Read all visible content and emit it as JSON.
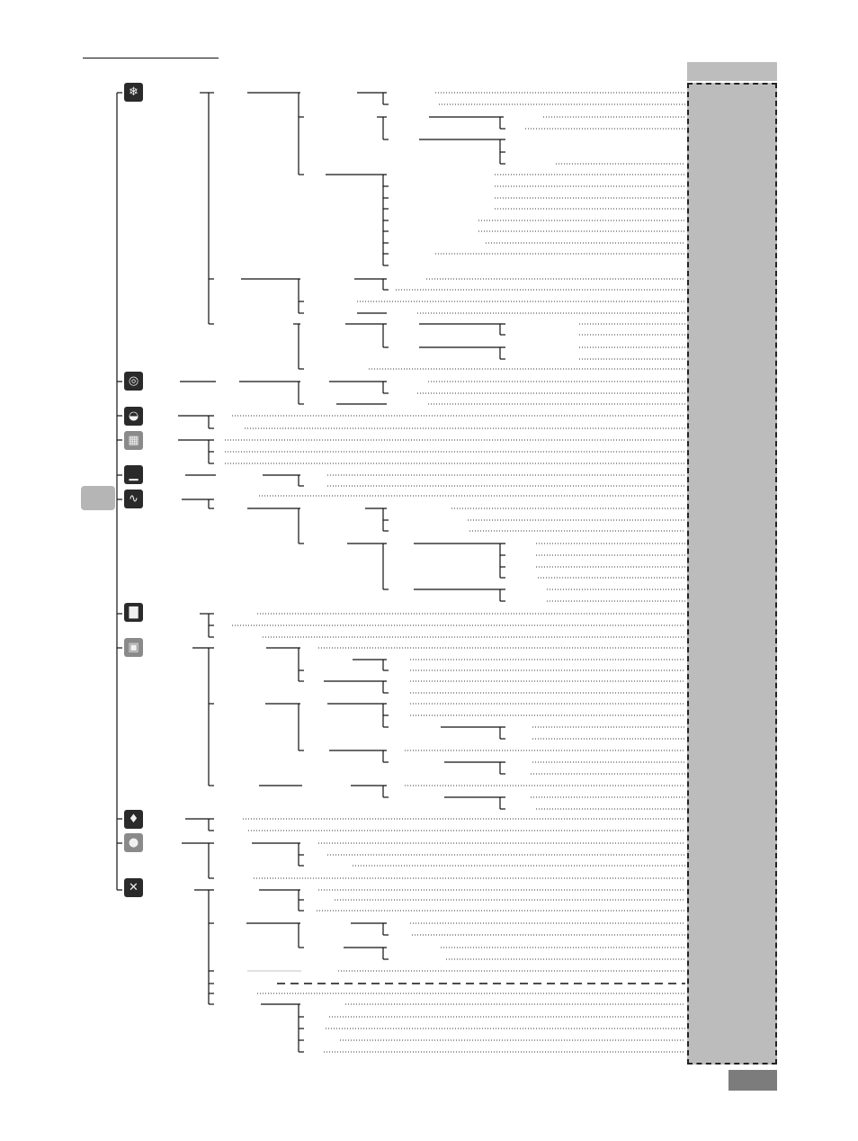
{
  "document": {
    "title": "",
    "page_number": "",
    "section_label": ""
  },
  "menu_icons": [
    {
      "name": "fan-settings-icon",
      "glyph": "❄"
    },
    {
      "name": "disc-icon",
      "glyph": "◎"
    },
    {
      "name": "cooking-icon",
      "glyph": "◒"
    },
    {
      "name": "abc-grid-icon",
      "glyph": "▦"
    },
    {
      "name": "landscape-icon",
      "glyph": "▁"
    },
    {
      "name": "graph-icon",
      "glyph": "∿"
    },
    {
      "name": "bar-chart-icon",
      "glyph": "▇"
    },
    {
      "name": "box-icon",
      "glyph": "▣"
    },
    {
      "name": "lightbulb-icon",
      "glyph": "♦"
    },
    {
      "name": "lock-icon",
      "glyph": "●"
    },
    {
      "name": "tools-icon",
      "glyph": "✕"
    }
  ]
}
